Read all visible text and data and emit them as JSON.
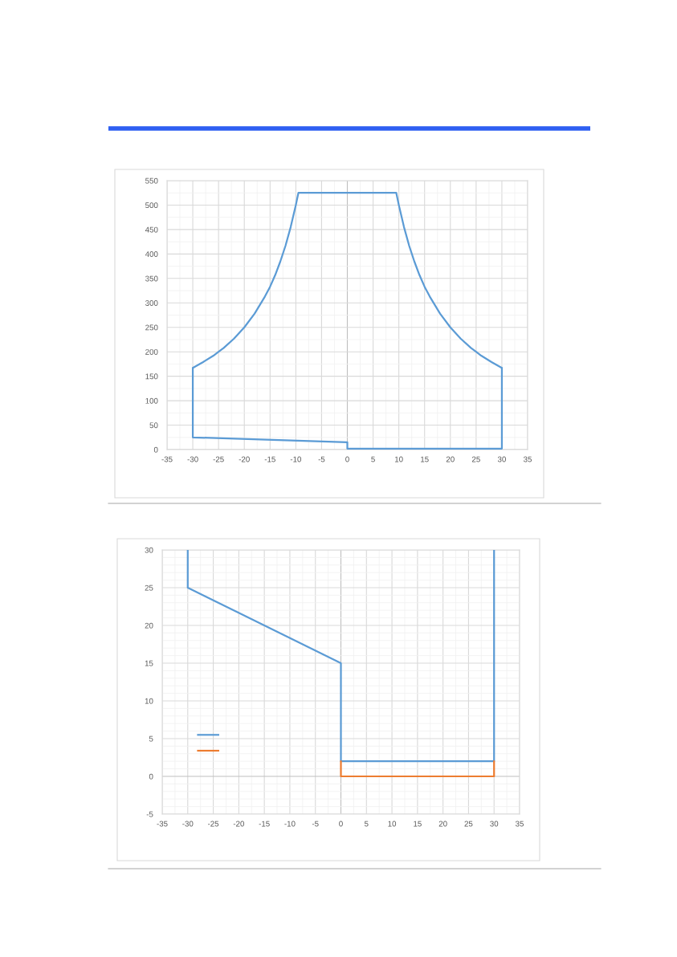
{
  "chart_data": [
    {
      "type": "line",
      "series": [
        {
          "color": "#5b9bd5",
          "x": [
            -30,
            -30,
            0,
            0,
            30,
            30
          ],
          "values": [
            167,
            25,
            15,
            2,
            2,
            167
          ]
        },
        {
          "color": "#5b9bd5",
          "x": [
            -30,
            -28,
            -26,
            -25,
            -24,
            -22,
            -20,
            -18,
            -16,
            -15,
            -14,
            -13,
            -12,
            -11,
            -10,
            -9.5,
            9.5,
            10,
            11,
            12,
            13,
            14,
            15,
            16,
            18,
            20,
            22,
            24,
            25,
            26,
            28,
            30
          ],
          "values": [
            167,
            179,
            192,
            200,
            208,
            227,
            250,
            278,
            313,
            333,
            357,
            385,
            417,
            455,
            500,
            525,
            525,
            500,
            455,
            417,
            385,
            357,
            333,
            313,
            278,
            250,
            227,
            208,
            200,
            192,
            179,
            167
          ]
        }
      ],
      "xlim": [
        -35,
        35
      ],
      "ylim": [
        0,
        550
      ],
      "xticks": [
        -35,
        {
          "value": -32.5,
          "label": null
        },
        -30,
        {
          "value": -27.5,
          "label": null
        },
        -25,
        {
          "value": -22.5,
          "label": null
        },
        -20,
        {
          "value": -17.5,
          "label": null
        },
        -15,
        {
          "value": -12.5,
          "label": null
        },
        -10,
        {
          "value": -7.5,
          "label": null
        },
        -5,
        {
          "value": -2.5,
          "label": null
        },
        0,
        {
          "value": 2.5,
          "label": null
        },
        5,
        {
          "value": 7.5,
          "label": null
        },
        10,
        {
          "value": 12.5,
          "label": null
        },
        15,
        {
          "value": 17.5,
          "label": null
        },
        20,
        {
          "value": 22.5,
          "label": null
        },
        25,
        {
          "value": 27.5,
          "label": null
        },
        30,
        {
          "value": 32.5,
          "label": null
        },
        35
      ],
      "yticks": [
        0,
        {
          "value": 25,
          "label": null
        },
        50,
        {
          "value": 75,
          "label": null
        },
        100,
        {
          "value": 125,
          "label": null
        },
        150,
        {
          "value": 175,
          "label": null
        },
        200,
        {
          "value": 225,
          "label": null
        },
        250,
        {
          "value": 275,
          "label": null
        },
        300,
        {
          "value": 325,
          "label": null
        },
        350,
        {
          "value": 375,
          "label": null
        },
        400,
        {
          "value": 425,
          "label": null
        },
        450,
        {
          "value": 475,
          "label": null
        },
        500,
        {
          "value": 525,
          "label": null
        },
        550
      ],
      "grid": true
    },
    {
      "type": "line",
      "series": [
        {
          "color": "#5b9bd5",
          "x": [
            -30,
            -30,
            -15,
            0,
            0,
            30,
            30
          ],
          "values": [
            30,
            25,
            20,
            15,
            2,
            2,
            30
          ]
        },
        {
          "color": "#ed7d31",
          "x": [
            0,
            0,
            30,
            30
          ],
          "values": [
            2,
            0,
            0,
            2
          ]
        }
      ],
      "xlim": [
        -35,
        35
      ],
      "ylim": [
        -5,
        30
      ],
      "xticks": [
        -35,
        {
          "value": -32.5,
          "label": null
        },
        -30,
        {
          "value": -27.5,
          "label": null
        },
        -25,
        {
          "value": -22.5,
          "label": null
        },
        -20,
        {
          "value": -17.5,
          "label": null
        },
        -15,
        {
          "value": -12.5,
          "label": null
        },
        -10,
        {
          "value": -7.5,
          "label": null
        },
        -5,
        {
          "value": -2.5,
          "label": null
        },
        0,
        {
          "value": 2.5,
          "label": null
        },
        5,
        {
          "value": 7.5,
          "label": null
        },
        10,
        {
          "value": 12.5,
          "label": null
        },
        15,
        {
          "value": 17.5,
          "label": null
        },
        20,
        {
          "value": 22.5,
          "label": null
        },
        25,
        {
          "value": 27.5,
          "label": null
        },
        30,
        {
          "value": 32.5,
          "label": null
        },
        35
      ],
      "yticks": [
        -5,
        {
          "value": -4,
          "label": null
        },
        {
          "value": -3,
          "label": null
        },
        {
          "value": -2,
          "label": null
        },
        {
          "value": -1,
          "label": null
        },
        0,
        {
          "value": 1,
          "label": null
        },
        {
          "value": 2,
          "label": null
        },
        {
          "value": 3,
          "label": null
        },
        {
          "value": 4,
          "label": null
        },
        5,
        {
          "value": 6,
          "label": null
        },
        {
          "value": 7,
          "label": null
        },
        {
          "value": 8,
          "label": null
        },
        {
          "value": 9,
          "label": null
        },
        10,
        {
          "value": 11,
          "label": null
        },
        {
          "value": 12,
          "label": null
        },
        {
          "value": 13,
          "label": null
        },
        {
          "value": 14,
          "label": null
        },
        15,
        {
          "value": 16,
          "label": null
        },
        {
          "value": 17,
          "label": null
        },
        {
          "value": 18,
          "label": null
        },
        {
          "value": 19,
          "label": null
        },
        20,
        {
          "value": 21,
          "label": null
        },
        {
          "value": 22,
          "label": null
        },
        {
          "value": 23,
          "label": null
        },
        {
          "value": 24,
          "label": null
        },
        25,
        {
          "value": 26,
          "label": null
        },
        {
          "value": 27,
          "label": null
        },
        {
          "value": 28,
          "label": null
        },
        {
          "value": 29,
          "label": null
        },
        30
      ],
      "grid": true
    }
  ]
}
